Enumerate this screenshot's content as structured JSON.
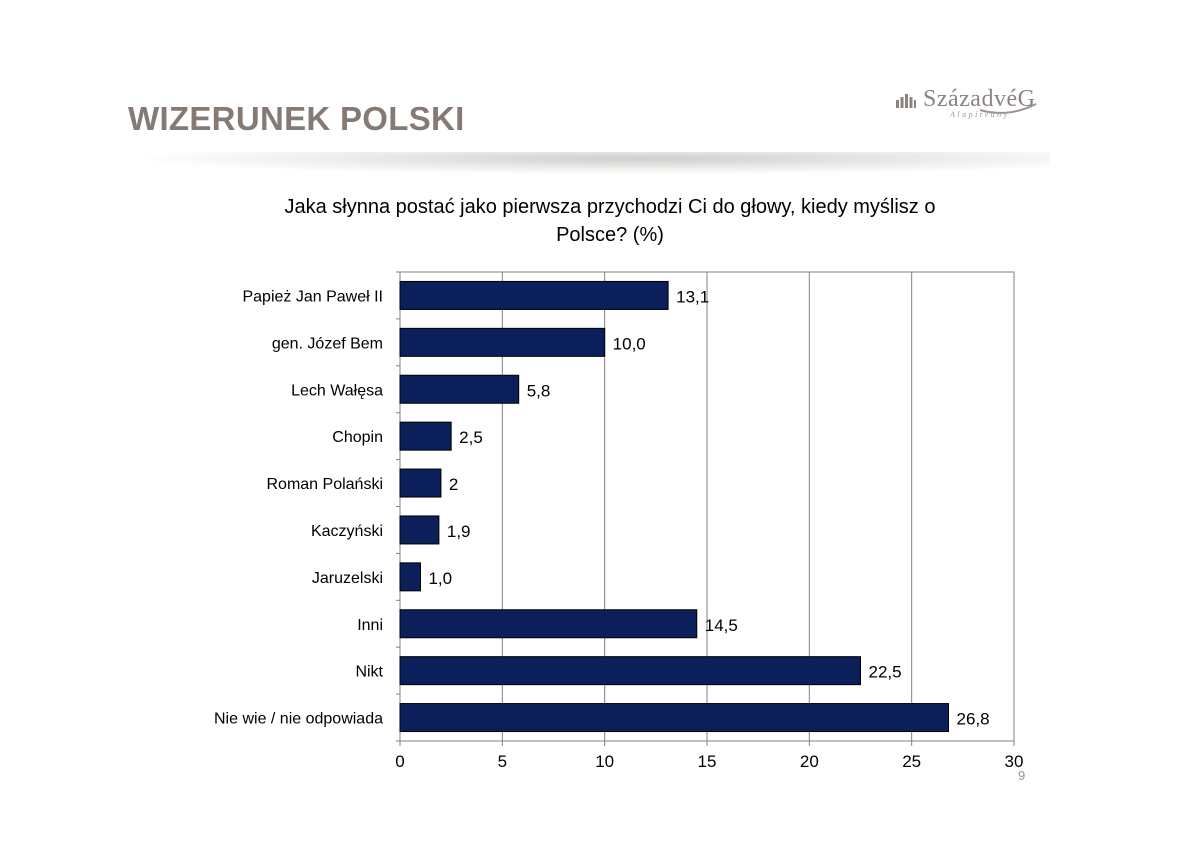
{
  "slide": {
    "title": "WIZERUNEK POLSKI",
    "page_number": "9"
  },
  "logo": {
    "name": "SzázadvéG",
    "sub": "Alapítvány",
    "icon": "bar-chart-icon"
  },
  "colors": {
    "bar": "#0b1f5b",
    "title": "#857b74",
    "grid": "#808080"
  },
  "chart_data": {
    "type": "bar",
    "orientation": "horizontal",
    "title_lines": [
      "Jaka słynna postać jako pierwsza przychodzi Ci do głowy, kiedy myślisz o",
      "Polsce? (%)"
    ],
    "categories": [
      "Papież Jan Paweł II",
      "gen. Józef Bem",
      "Lech Wałęsa",
      "Chopin",
      "Roman Polański",
      "Kaczyński",
      "Jaruzelski",
      "Inni",
      "Nikt",
      "Nie wie / nie odpowiada"
    ],
    "values": [
      13.1,
      10.0,
      5.8,
      2.5,
      2,
      1.9,
      1.0,
      14.5,
      22.5,
      26.8
    ],
    "data_labels": [
      "13,1",
      "10,0",
      "5,8",
      "2,5",
      "2",
      "1,9",
      "1,0",
      "14,5",
      "22,5",
      "26,8"
    ],
    "xlim": [
      0,
      30
    ],
    "xticks": [
      0,
      5,
      10,
      15,
      20,
      25,
      30
    ],
    "xtick_labels": [
      "0",
      "5",
      "10",
      "15",
      "20",
      "25",
      "30"
    ],
    "xlabel": "",
    "ylabel": "",
    "grid": "vertical",
    "legend": "none"
  }
}
